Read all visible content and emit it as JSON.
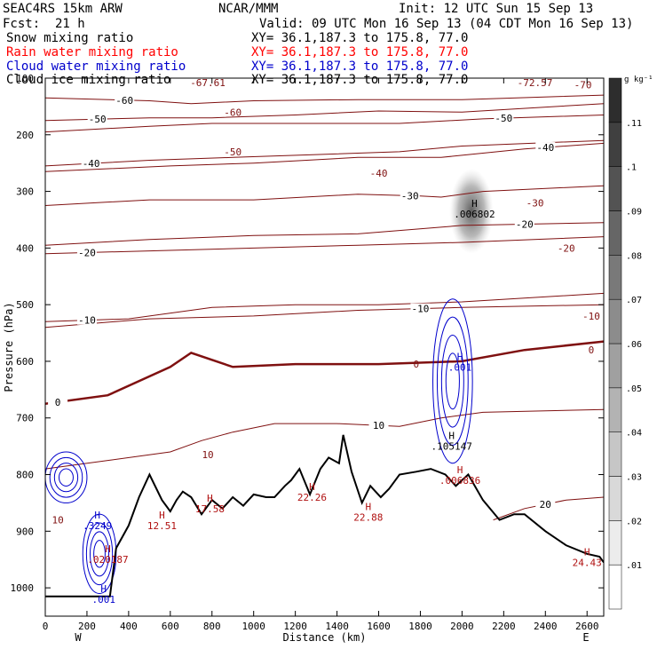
{
  "header": {
    "model": "SEAC4RS 15km ARW",
    "center": "NCAR/MMM",
    "init": "Init: 12 UTC Sun 15 Sep 13",
    "fcst_label": "Fcst:",
    "fcst_value": "21 h",
    "valid": "Valid: 09 UTC Mon 16 Sep 13 (04 CDT Mon 16 Sep 13)",
    "fields": [
      {
        "name": "Snow mixing ratio",
        "xy": "XY=  36.1,187.3 to 175.8, 77.0",
        "color": "#000000"
      },
      {
        "name": "Rain water mixing ratio",
        "xy": "XY=  36.1,187.3 to 175.8, 77.0",
        "color": "#ff0000"
      },
      {
        "name": "Cloud water mixing ratio",
        "xy": "XY=  36.1,187.3 to 175.8, 77.0",
        "color": "#0000cc"
      },
      {
        "name": "Cloud ice mixing ratio",
        "xy": "XY=  36.1,187.3 to 175.8, 77.0",
        "color": "#000000"
      }
    ]
  },
  "chart_data": {
    "type": "contour",
    "xlabel": "Distance (km)",
    "ylabel": "Pressure (hPa)",
    "xlim": [
      0,
      2680
    ],
    "ylim": [
      1050,
      100
    ],
    "x_ticks": [
      0,
      200,
      400,
      600,
      800,
      1000,
      1200,
      1400,
      1600,
      1800,
      2000,
      2200,
      2400,
      2600
    ],
    "y_ticks": [
      100,
      200,
      300,
      400,
      500,
      600,
      700,
      800,
      900,
      1000
    ],
    "x_end_labels": [
      "W",
      "E"
    ],
    "colorbar": {
      "unit": "g kg⁻¹",
      "ticks": [
        ".01",
        ".02",
        ".03",
        ".04",
        ".05",
        ".06",
        ".07",
        ".08",
        ".09",
        ".1",
        ".11"
      ]
    },
    "terrain": {
      "color": "#000000",
      "points": [
        [
          0,
          1015
        ],
        [
          310,
          1015
        ],
        [
          340,
          930
        ],
        [
          400,
          890
        ],
        [
          450,
          840
        ],
        [
          500,
          800
        ],
        [
          560,
          845
        ],
        [
          600,
          865
        ],
        [
          630,
          845
        ],
        [
          660,
          830
        ],
        [
          700,
          840
        ],
        [
          750,
          870
        ],
        [
          800,
          845
        ],
        [
          850,
          860
        ],
        [
          900,
          840
        ],
        [
          950,
          855
        ],
        [
          1000,
          835
        ],
        [
          1060,
          840
        ],
        [
          1100,
          840
        ],
        [
          1150,
          820
        ],
        [
          1180,
          810
        ],
        [
          1220,
          790
        ],
        [
          1270,
          835
        ],
        [
          1320,
          790
        ],
        [
          1360,
          770
        ],
        [
          1410,
          780
        ],
        [
          1430,
          730
        ],
        [
          1470,
          795
        ],
        [
          1520,
          850
        ],
        [
          1560,
          820
        ],
        [
          1610,
          840
        ],
        [
          1650,
          825
        ],
        [
          1700,
          800
        ],
        [
          1780,
          795
        ],
        [
          1850,
          790
        ],
        [
          1920,
          800
        ],
        [
          1970,
          820
        ],
        [
          2030,
          800
        ],
        [
          2100,
          845
        ],
        [
          2180,
          880
        ],
        [
          2250,
          870
        ],
        [
          2300,
          870
        ],
        [
          2400,
          900
        ],
        [
          2500,
          925
        ],
        [
          2600,
          940
        ],
        [
          2660,
          945
        ],
        [
          2680,
          955
        ]
      ]
    },
    "temperature_contours": {
      "color": "#7f1010",
      "levels": [
        {
          "label": "-60",
          "points": [
            [
              0,
              135
            ],
            [
              500,
              140
            ],
            [
              700,
              145
            ],
            [
              1000,
              140
            ],
            [
              1500,
              138
            ],
            [
              2000,
              138
            ],
            [
              2680,
              130
            ]
          ],
          "label_x": 380
        },
        {
          "label": "-50",
          "points": [
            [
              0,
              175
            ],
            [
              500,
              170
            ],
            [
              800,
              170
            ],
            [
              1200,
              165
            ],
            [
              1600,
              158
            ],
            [
              2000,
              160
            ],
            [
              2680,
              145
            ]
          ],
          "label_x": 250
        },
        {
          "label": "-50",
          "points": [
            [
              0,
              195
            ],
            [
              500,
              185
            ],
            [
              800,
              180
            ],
            [
              1200,
              180
            ],
            [
              1700,
              180
            ],
            [
              2100,
              172
            ],
            [
              2680,
              165
            ]
          ],
          "label_x": 2200
        },
        {
          "label": "-40",
          "points": [
            [
              0,
              255
            ],
            [
              500,
              245
            ],
            [
              900,
              240
            ],
            [
              1300,
              235
            ],
            [
              1700,
              230
            ],
            [
              2000,
              220
            ],
            [
              2680,
              210
            ]
          ],
          "label_x": 220
        },
        {
          "label": "-40",
          "points": [
            [
              0,
              265
            ],
            [
              600,
              255
            ],
            [
              1000,
              250
            ],
            [
              1500,
              240
            ],
            [
              1900,
              240
            ],
            [
              2300,
              225
            ],
            [
              2680,
              215
            ]
          ],
          "label_x": 2400
        },
        {
          "label": "-30",
          "points": [
            [
              0,
              325
            ],
            [
              500,
              315
            ],
            [
              1000,
              315
            ],
            [
              1500,
              305
            ],
            [
              1800,
              308
            ],
            [
              1900,
              310
            ],
            [
              2100,
              300
            ],
            [
              2680,
              290
            ]
          ],
          "label_x": 1750
        },
        {
          "label": "-20",
          "points": [
            [
              0,
              395
            ],
            [
              500,
              385
            ],
            [
              1000,
              378
            ],
            [
              1500,
              375
            ],
            [
              2000,
              360
            ],
            [
              2680,
              355
            ]
          ],
          "label_x": 2300
        },
        {
          "label": "-20",
          "points": [
            [
              0,
              410
            ],
            [
              500,
              405
            ],
            [
              1000,
              400
            ],
            [
              1500,
              395
            ],
            [
              2000,
              390
            ],
            [
              2680,
              380
            ]
          ],
          "label_x": 200
        },
        {
          "label": "-10",
          "points": [
            [
              0,
              530
            ],
            [
              400,
              525
            ],
            [
              800,
              505
            ],
            [
              1200,
              500
            ],
            [
              1600,
              500
            ],
            [
              2000,
              495
            ],
            [
              2680,
              480
            ]
          ],
          "label_x": 200
        },
        {
          "label": "-10",
          "points": [
            [
              0,
              540
            ],
            [
              500,
              525
            ],
            [
              1000,
              520
            ],
            [
              1500,
              510
            ],
            [
              2000,
              505
            ],
            [
              2680,
              500
            ]
          ],
          "label_x": 1800
        },
        {
          "label": "0",
          "points": [
            [
              0,
              675
            ],
            [
              300,
              660
            ],
            [
              600,
              610
            ],
            [
              700,
              585
            ],
            [
              900,
              610
            ],
            [
              1200,
              605
            ],
            [
              1600,
              605
            ],
            [
              2000,
              600
            ],
            [
              2300,
              580
            ],
            [
              2680,
              565
            ]
          ],
          "label_x": 60,
          "bold": true
        },
        {
          "label": "10",
          "points": [
            [
              0,
              790
            ],
            [
              300,
              775
            ],
            [
              600,
              760
            ],
            [
              750,
              740
            ],
            [
              900,
              725
            ],
            [
              1100,
              710
            ],
            [
              1400,
              710
            ],
            [
              1700,
              715
            ],
            [
              1900,
              700
            ],
            [
              2100,
              690
            ],
            [
              2680,
              685
            ]
          ],
          "label_x": 1600
        },
        {
          "label": "20",
          "points": [
            [
              2150,
              880
            ],
            [
              2300,
              860
            ],
            [
              2500,
              845
            ],
            [
              2680,
              840
            ]
          ],
          "label_x": 2400
        }
      ],
      "extra_labels": [
        {
          "text": "-67.61",
          "x": 780,
          "p": 108
        },
        {
          "text": "-72.57",
          "x": 2350,
          "p": 108
        },
        {
          "text": "-70",
          "x": 2580,
          "p": 112
        },
        {
          "text": "-60",
          "x": 900,
          "p": 160
        },
        {
          "text": "-50",
          "x": 900,
          "p": 230
        },
        {
          "text": "-40",
          "x": 1600,
          "p": 268
        },
        {
          "text": "-30",
          "x": 2350,
          "p": 320
        },
        {
          "text": "-20",
          "x": 2500,
          "p": 400
        },
        {
          "text": "-10",
          "x": 2620,
          "p": 520
        },
        {
          "text": "0",
          "x": 1780,
          "p": 605
        },
        {
          "text": "0",
          "x": 2620,
          "p": 580
        },
        {
          "text": "10",
          "x": 780,
          "p": 765
        },
        {
          "text": "10",
          "x": 60,
          "p": 880
        }
      ]
    },
    "highs": [
      {
        "text": "12.51",
        "x": 560,
        "p": 890,
        "color": "#b01010"
      },
      {
        "text": "17.58",
        "x": 790,
        "p": 860,
        "color": "#b01010"
      },
      {
        "text": "22.26",
        "x": 1280,
        "p": 840,
        "color": "#b01010"
      },
      {
        "text": "22.88",
        "x": 1550,
        "p": 875,
        "color": "#b01010"
      },
      {
        "text": ".3249",
        "x": 250,
        "p": 890,
        "color": "#0000cc"
      },
      {
        "text": ".001",
        "x": 280,
        "p": 1020,
        "color": "#0000cc"
      },
      {
        "text": ".020187",
        "x": 300,
        "p": 950,
        "color": "#b01010"
      },
      {
        "text": ".006802",
        "x": 2060,
        "p": 340,
        "color": "#000000"
      },
      {
        "text": ".105147",
        "x": 1950,
        "p": 750,
        "color": "#000000"
      },
      {
        "text": ".001",
        "x": 1990,
        "p": 610,
        "color": "#0000cc"
      },
      {
        "text": ".006836",
        "x": 1990,
        "p": 810,
        "color": "#b01010"
      },
      {
        "text": "24.43",
        "x": 2600,
        "p": 955,
        "color": "#b01010"
      }
    ],
    "cloud_ice_shading": {
      "x_range": [
        1940,
        2150
      ],
      "p_range": [
        260,
        410
      ],
      "max": ".11"
    },
    "cloud_water_contours": {
      "color": "#0000cc",
      "regions": [
        [
          0,
          200,
          760,
          850
        ],
        [
          180,
          340,
          870,
          1010
        ],
        [
          1860,
          2050,
          490,
          780
        ]
      ]
    }
  }
}
